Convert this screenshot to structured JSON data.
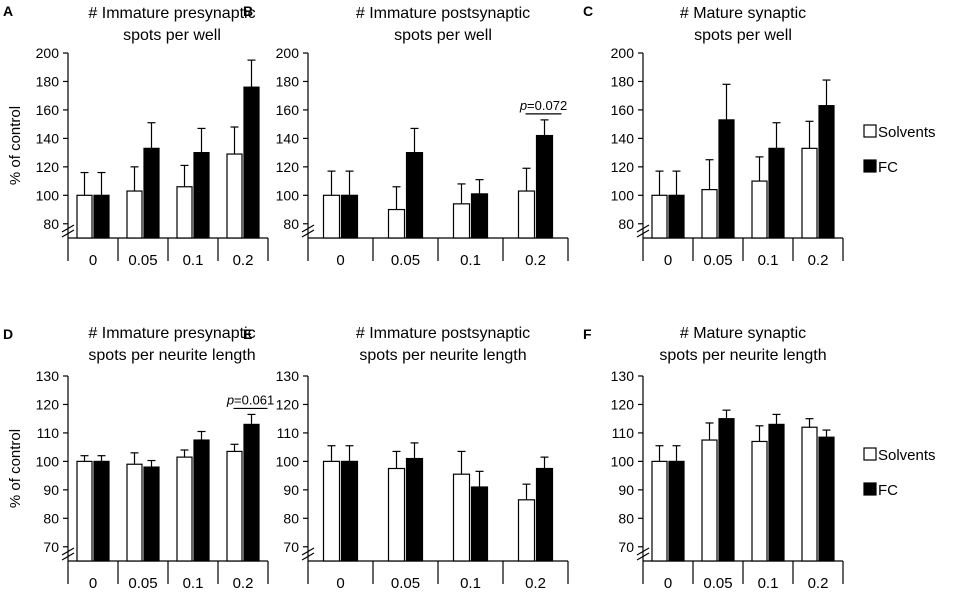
{
  "figure": {
    "ylabel": "% of control",
    "legend": {
      "solvents": "Solvents",
      "fc": "FC"
    }
  },
  "chart_data": [
    {
      "type": "bar",
      "panel": "A",
      "title": [
        "# Immature presynaptic",
        "spots per well"
      ],
      "categories": [
        "0",
        "0.05",
        "0.1",
        "0.2"
      ],
      "ylabel": "% of control",
      "ylim": [
        70,
        200
      ],
      "yticks": [
        80,
        100,
        120,
        140,
        160,
        180,
        200
      ],
      "series": [
        {
          "name": "Solvents",
          "fill": "#ffffff",
          "values": [
            100,
            103,
            106,
            129
          ],
          "errors": [
            16,
            17,
            15,
            19
          ]
        },
        {
          "name": "FC",
          "fill": "#000000",
          "values": [
            100,
            133,
            130,
            176
          ],
          "errors": [
            16,
            18,
            17,
            19
          ]
        }
      ]
    },
    {
      "type": "bar",
      "panel": "B",
      "title": [
        "# Immature postsynaptic",
        "spots per well"
      ],
      "categories": [
        "0",
        "0.05",
        "0.1",
        "0.2"
      ],
      "ylabel": "% of control",
      "ylim": [
        70,
        200
      ],
      "yticks": [
        80,
        100,
        120,
        140,
        160,
        180,
        200
      ],
      "series": [
        {
          "name": "Solvents",
          "fill": "#ffffff",
          "values": [
            100,
            90,
            94,
            103
          ],
          "errors": [
            17,
            16,
            14,
            16
          ]
        },
        {
          "name": "FC",
          "fill": "#000000",
          "values": [
            100,
            130,
            101,
            142
          ],
          "errors": [
            17,
            17,
            10,
            11
          ]
        }
      ],
      "annotation": {
        "category_index": 3,
        "label": "p=0.072"
      }
    },
    {
      "type": "bar",
      "panel": "C",
      "title": [
        "# Mature synaptic",
        "spots per well"
      ],
      "categories": [
        "0",
        "0.05",
        "0.1",
        "0.2"
      ],
      "ylabel": "% of control",
      "ylim": [
        70,
        200
      ],
      "yticks": [
        80,
        100,
        120,
        140,
        160,
        180,
        200
      ],
      "series": [
        {
          "name": "Solvents",
          "fill": "#ffffff",
          "values": [
            100,
            104,
            110,
            133
          ],
          "errors": [
            17,
            21,
            17,
            19
          ]
        },
        {
          "name": "FC",
          "fill": "#000000",
          "values": [
            100,
            153,
            133,
            163
          ],
          "errors": [
            17,
            25,
            18,
            18
          ]
        }
      ]
    },
    {
      "type": "bar",
      "panel": "D",
      "title": [
        "# Immature presynaptic",
        "spots per neurite length"
      ],
      "categories": [
        "0",
        "0.05",
        "0.1",
        "0.2"
      ],
      "ylabel": "% of control",
      "ylim": [
        65,
        130
      ],
      "yticks": [
        70,
        80,
        90,
        100,
        110,
        120,
        130
      ],
      "series": [
        {
          "name": "Solvents",
          "fill": "#ffffff",
          "values": [
            100,
            99,
            101.5,
            103.5
          ],
          "errors": [
            2,
            4,
            2.5,
            2.5
          ]
        },
        {
          "name": "FC",
          "fill": "#000000",
          "values": [
            100,
            98,
            107.5,
            113
          ],
          "errors": [
            2,
            2.3,
            3,
            3.5
          ]
        }
      ],
      "annotation": {
        "category_index": 3,
        "label": "p=0.061"
      }
    },
    {
      "type": "bar",
      "panel": "E",
      "title": [
        "# Immature postsynaptic",
        "spots per neurite length"
      ],
      "categories": [
        "0",
        "0.05",
        "0.1",
        "0.2"
      ],
      "ylabel": "% of control",
      "ylim": [
        65,
        130
      ],
      "yticks": [
        70,
        80,
        90,
        100,
        110,
        120,
        130
      ],
      "series": [
        {
          "name": "Solvents",
          "fill": "#ffffff",
          "values": [
            100,
            97.5,
            95.5,
            86.5
          ],
          "errors": [
            5.5,
            6,
            8,
            5.5
          ]
        },
        {
          "name": "FC",
          "fill": "#000000",
          "values": [
            100,
            101,
            91,
            97.5
          ],
          "errors": [
            5.5,
            5.5,
            5.5,
            4
          ]
        }
      ]
    },
    {
      "type": "bar",
      "panel": "F",
      "title": [
        "# Mature synaptic",
        "spots per neurite length"
      ],
      "categories": [
        "0",
        "0.05",
        "0.1",
        "0.2"
      ],
      "ylabel": "% of control",
      "ylim": [
        65,
        130
      ],
      "yticks": [
        70,
        80,
        90,
        100,
        110,
        120,
        130
      ],
      "series": [
        {
          "name": "Solvents",
          "fill": "#ffffff",
          "values": [
            100,
            107.5,
            107,
            112
          ],
          "errors": [
            5.5,
            6,
            5.5,
            3
          ]
        },
        {
          "name": "FC",
          "fill": "#000000",
          "values": [
            100,
            115,
            113,
            108.5
          ],
          "errors": [
            5.5,
            3,
            3.5,
            2.5
          ]
        }
      ]
    }
  ]
}
